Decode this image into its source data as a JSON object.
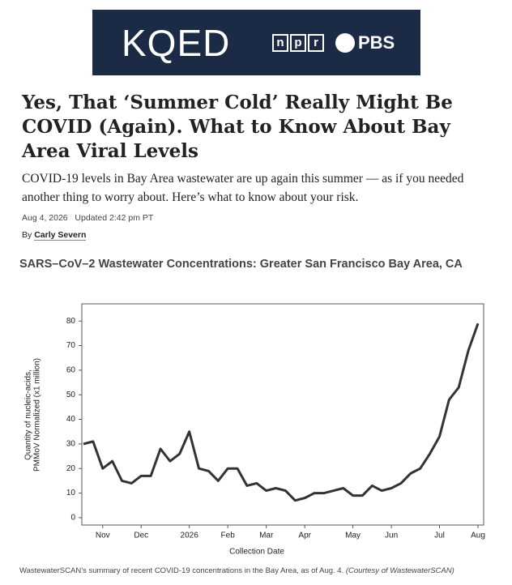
{
  "header": {
    "logo": "KQED",
    "partner_1": "npr",
    "partner_2": "PBS"
  },
  "article": {
    "title": "Yes, That ‘Summer Cold’ Really Might Be COVID (Again). What to Know About Bay Area Viral Levels",
    "subtitle": "COVID-19 levels in Bay Area wastewater are up again this summer — as if you needed another thing to worry about. Here’s what to know about your risk.",
    "date": "Aug 4, 2026",
    "updated": "Updated 2:42 pm PT",
    "by": "By",
    "author": "Carly Severn",
    "caption": "WastewaterSCAN’s summary of recent COVID-19 concentrations in the Bay Area, as of Aug. 4.",
    "caption_credit": "(Courtesy of WastewaterSCAN)"
  },
  "chart_data": {
    "type": "line",
    "title": "SARS–CoV–2 Wastewater Concentrations: Greater San Francisco Bay Area, CA",
    "x_label": "Collection Date",
    "y_label": [
      "Quantity of nucleic-acids,",
      "PMMoV Normalized (x1 million)"
    ],
    "categories": [
      null,
      null,
      "Nov",
      null,
      null,
      null,
      "Dec",
      null,
      null,
      null,
      null,
      "2026",
      null,
      null,
      null,
      "Feb",
      null,
      null,
      null,
      "Mar",
      null,
      null,
      null,
      "Apr",
      null,
      null,
      null,
      null,
      "May",
      null,
      null,
      null,
      "Jun",
      null,
      null,
      null,
      null,
      "Jul",
      null,
      null,
      null,
      "Aug"
    ],
    "values": [
      30,
      31,
      20,
      23,
      15,
      14,
      17,
      17,
      28,
      23,
      26,
      35,
      20,
      19,
      15,
      20,
      20,
      13,
      14,
      11,
      12,
      11,
      7,
      8,
      10,
      10,
      11,
      12,
      9,
      9,
      13,
      11,
      12,
      14,
      18,
      20,
      26,
      33,
      48,
      53,
      68,
      79
    ],
    "color": "#333333",
    "ylim": [
      -3,
      87
    ],
    "yticks": [
      0,
      10,
      20,
      30,
      40,
      50,
      60,
      70,
      80
    ]
  }
}
